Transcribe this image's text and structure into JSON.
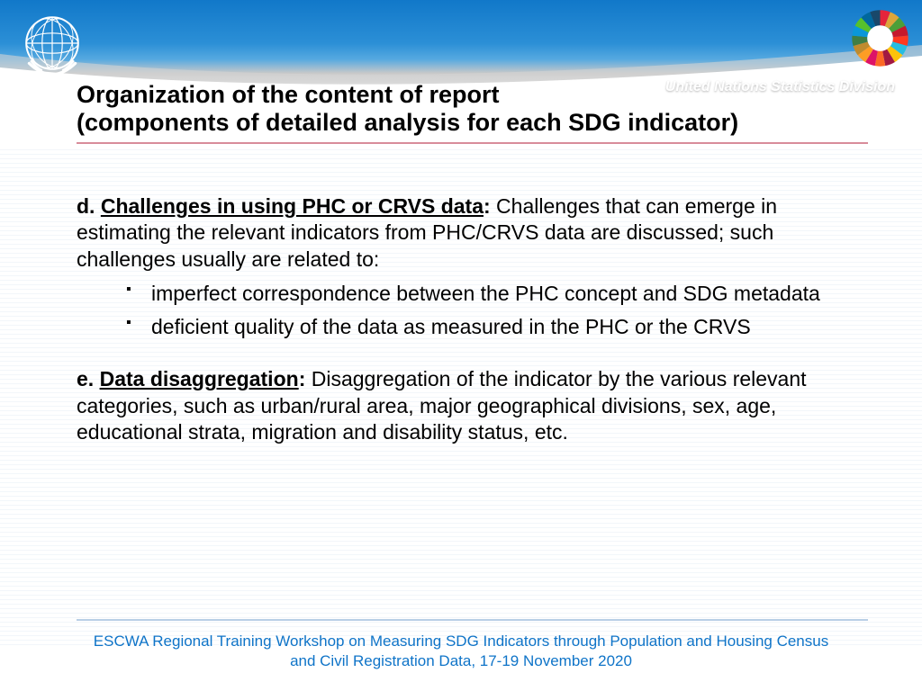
{
  "header": {
    "division_label": "United Nations Statistics Division",
    "gradient_top": "#1178c9",
    "gradient_bottom": "#ffffff",
    "curve_color": "#c9c9c9"
  },
  "title": {
    "line1": "Organization of the content of report",
    "line2": "(components of detailed analysis for each SDG indicator)",
    "fontsize": 27,
    "underline_color": "#d88c9a"
  },
  "section_d": {
    "lead": "d. ",
    "heading": "Challenges in using PHC or CRVS data",
    "heading_suffix": ":",
    "body": "  Challenges that can emerge in estimating the relevant indicators from PHC/CRVS data are discussed; such challenges usually are related to:",
    "bullets": [
      "imperfect correspondence between the PHC concept  and SDG metadata",
      "deficient quality of the data as measured in the PHC or the CRVS"
    ]
  },
  "section_e": {
    "lead": "e.  ",
    "heading": "Data disaggregation",
    "heading_suffix": ":",
    "body": " Disaggregation of the indicator by the various relevant categories, such as urban/rural area, major geographical divisions, sex, age, educational strata, migration and disability status, etc."
  },
  "footer": {
    "text": "ESCWA Regional Training Workshop on Measuring SDG Indicators through Population and Housing Census and Civil Registration Data, 17-19 November 2020",
    "color": "#0f74c8",
    "fontsize": 17
  },
  "body_style": {
    "fontsize": 23,
    "text_color": "#000000",
    "line_bg_color": "#e8eef5",
    "bottom_rule_color": "#b9cfe6"
  },
  "sdg_colors": [
    "#e5243b",
    "#dda63a",
    "#4c9f38",
    "#c5192d",
    "#ff3a21",
    "#26bde2",
    "#fcc30b",
    "#a21942",
    "#fd6925",
    "#dd1367",
    "#fd9d24",
    "#bf8b2e",
    "#3f7e44",
    "#0a97d9",
    "#56c02b",
    "#00689d",
    "#19486a"
  ]
}
